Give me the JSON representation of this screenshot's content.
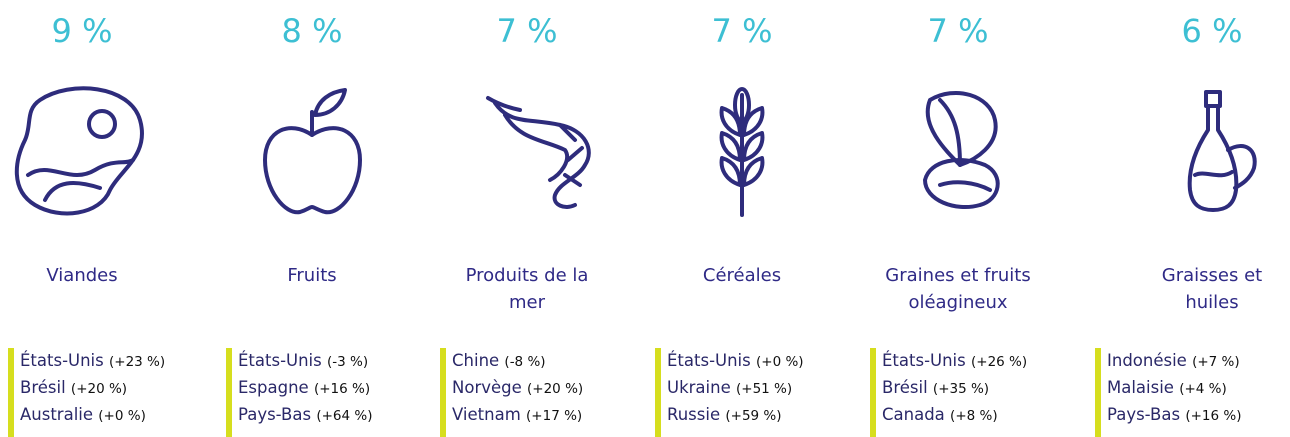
{
  "items": [
    {
      "percent": "9 %",
      "label": [
        "Viandes"
      ],
      "countries": [
        {
          "name": "États-Unis",
          "change": "(+23 %)"
        },
        {
          "name": "Brésil",
          "change": "(+20 %)"
        },
        {
          "name": "Australie",
          "change": "(+0 %)"
        }
      ]
    },
    {
      "percent": "8 %",
      "label": [
        "Fruits"
      ],
      "countries": [
        {
          "name": "États-Unis",
          "change": "(-3 %)"
        },
        {
          "name": "Espagne",
          "change": "(+16 %)"
        },
        {
          "name": "Pays-Bas",
          "change": "(+64 %)"
        }
      ]
    },
    {
      "percent": "7 %",
      "label": [
        "Produits de la",
        "mer"
      ],
      "countries": [
        {
          "name": "Chine",
          "change": "(-8 %)"
        },
        {
          "name": "Norvège",
          "change": "(+20 %)"
        },
        {
          "name": "Vietnam",
          "change": "(+17 %)"
        }
      ]
    },
    {
      "percent": "7 %",
      "label": [
        "Céréales"
      ],
      "countries": [
        {
          "name": "États-Unis",
          "change": "(+0 %)"
        },
        {
          "name": "Ukraine",
          "change": "(+51 %)"
        },
        {
          "name": "Russie",
          "change": "(+59 %)"
        }
      ]
    },
    {
      "percent": "7 %",
      "label": [
        "Graines et fruits",
        "oléagineux"
      ],
      "countries": [
        {
          "name": "États-Unis",
          "change": "(+26 %)"
        },
        {
          "name": "Brésil",
          "change": "(+35 %)"
        },
        {
          "name": "Canada",
          "change": "(+8 %)"
        }
      ]
    },
    {
      "percent": "6 %",
      "label": [
        "Graisses et",
        "huiles"
      ],
      "countries": [
        {
          "name": "Indonésie",
          "change": "(+7 %)"
        },
        {
          "name": "Malaisie",
          "change": "(+4 %)"
        },
        {
          "name": "Pays-Bas",
          "change": "(+16 %)"
        }
      ]
    }
  ]
}
